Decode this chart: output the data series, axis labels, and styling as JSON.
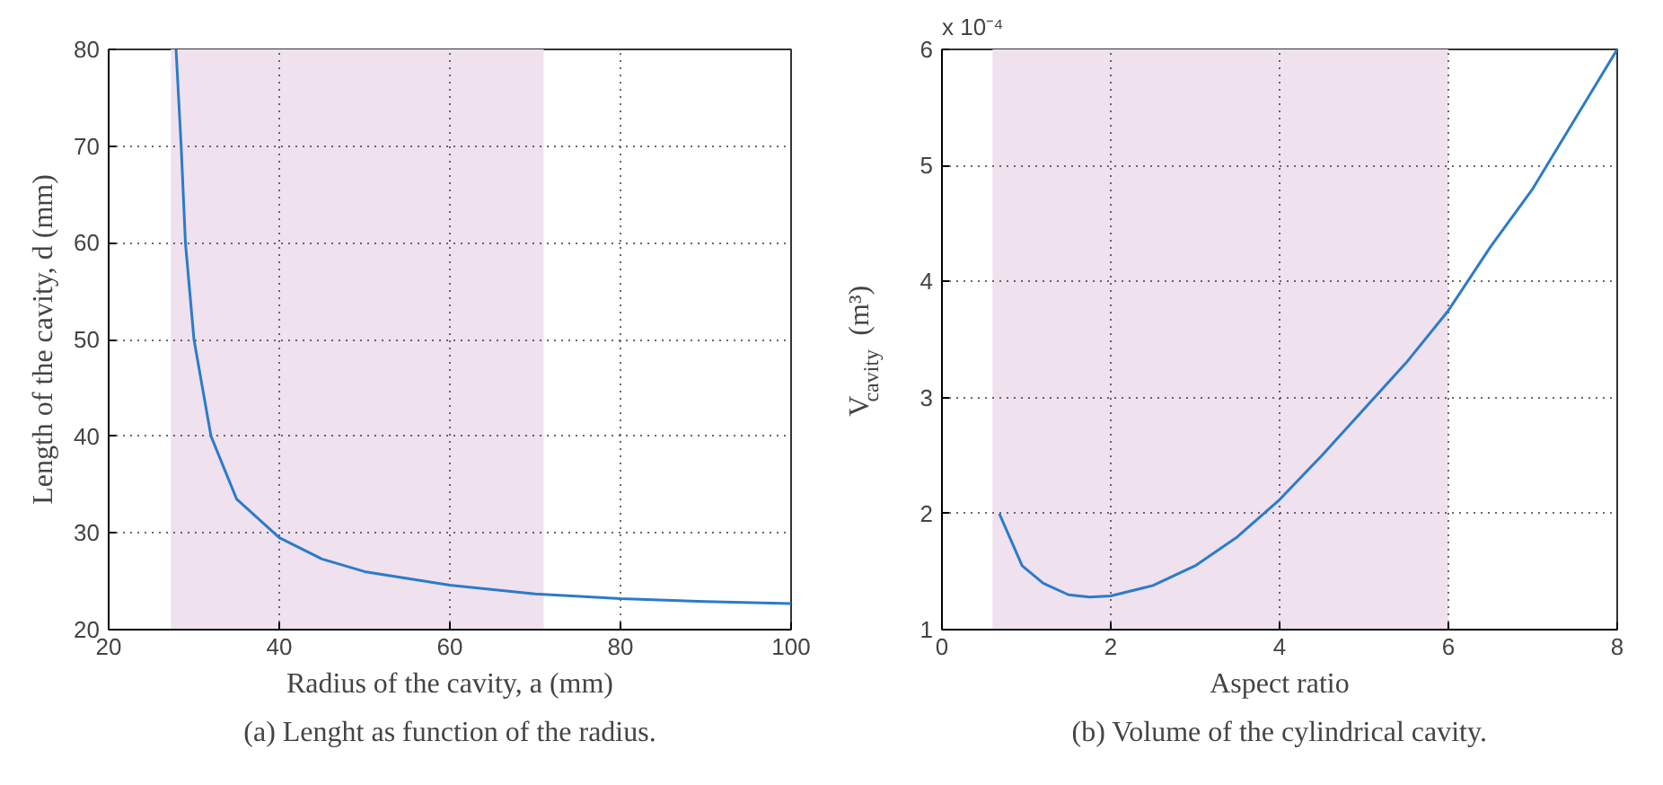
{
  "chart_data": [
    {
      "type": "line",
      "xlabel": "Radius of the cavity, a (mm)",
      "ylabel": "Length of the cavity, d (mm)",
      "xlim": [
        20,
        100
      ],
      "ylim": [
        20,
        80
      ],
      "xticks": [
        20,
        40,
        60,
        80,
        100
      ],
      "yticks": [
        20,
        30,
        40,
        50,
        60,
        70,
        80
      ],
      "grid": true,
      "x": [
        27.9,
        28.5,
        29,
        30,
        32,
        35,
        40,
        45,
        50,
        60,
        70,
        80,
        90,
        100
      ],
      "series": [
        {
          "color": "#2b7bca",
          "values": [
            80,
            70,
            60,
            50,
            40,
            33.5,
            29.5,
            27.3,
            26,
            24.6,
            23.7,
            23.2,
            22.9,
            22.7
          ]
        }
      ],
      "bands": [
        {
          "axis": "x",
          "from": 27.3,
          "to": 71,
          "color": "#efe1ee"
        }
      ],
      "annotations": [
        "(a) Lenght as function of the radius."
      ]
    },
    {
      "type": "line",
      "xlabel": "Aspect ratio",
      "ylabel": "V$_{cavity}$ (m³)",
      "xlim": [
        0,
        8
      ],
      "ylim": [
        1,
        6
      ],
      "xticks": [
        0,
        2,
        4,
        6,
        8
      ],
      "yticks": [
        1,
        2,
        3,
        4,
        5,
        6
      ],
      "grid": true,
      "x": [
        0.68,
        0.95,
        1.2,
        1.5,
        1.75,
        2,
        2.5,
        3,
        3.5,
        4,
        4.5,
        5,
        5.5,
        6,
        6.5,
        7,
        7.5,
        8
      ],
      "series": [
        {
          "color": "#2b7bca",
          "values": [
            2.0,
            1.55,
            1.4,
            1.3,
            1.28,
            1.29,
            1.38,
            1.55,
            1.8,
            2.12,
            2.5,
            2.9,
            3.3,
            3.75,
            4.3,
            4.8,
            5.4,
            6.0
          ]
        }
      ],
      "bands": [
        {
          "axis": "x",
          "from": 0.6,
          "to": 6,
          "color": "#efe1ee"
        }
      ],
      "annotations": [
        "x 10⁻⁴",
        "(b) Volume of the cylindrical cavity."
      ]
    }
  ]
}
